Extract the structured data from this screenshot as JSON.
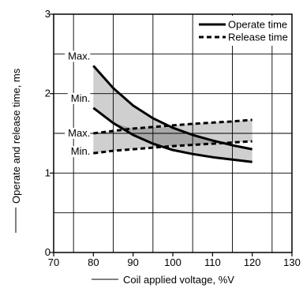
{
  "chart_data": {
    "type": "line",
    "title": "",
    "xlabel": "Coil applied voltage, %V",
    "ylabel": "Operate and release time, ms",
    "xlim": [
      70,
      130
    ],
    "ylim": [
      0,
      3
    ],
    "xticks": [
      "70",
      "80",
      "90",
      "100",
      "110",
      "120",
      "130"
    ],
    "yticks": [
      "0",
      "1",
      "2",
      "3"
    ],
    "grid": true,
    "legend_position": "top-right",
    "x": [
      80,
      85,
      90,
      95,
      100,
      105,
      110,
      115,
      120
    ],
    "legend": [
      {
        "label": "Operate time",
        "style": "solid"
      },
      {
        "label": "Release time",
        "style": "dashed"
      }
    ],
    "series": [
      {
        "group": "Operate time",
        "bound": "Max.",
        "style": "solid",
        "values": [
          2.35,
          2.07,
          1.85,
          1.69,
          1.57,
          1.48,
          1.41,
          1.35,
          1.3
        ]
      },
      {
        "group": "Operate time",
        "bound": "Min.",
        "style": "solid",
        "values": [
          1.82,
          1.63,
          1.48,
          1.37,
          1.29,
          1.24,
          1.2,
          1.17,
          1.14
        ]
      },
      {
        "group": "Release time",
        "bound": "Max.",
        "style": "dashed",
        "values": [
          1.5,
          1.53,
          1.56,
          1.58,
          1.6,
          1.62,
          1.635,
          1.65,
          1.67
        ]
      },
      {
        "group": "Release time",
        "bound": "Min.",
        "style": "dashed",
        "values": [
          1.25,
          1.28,
          1.3,
          1.32,
          1.34,
          1.355,
          1.37,
          1.385,
          1.4
        ]
      }
    ],
    "curve_labels": [
      "Max.",
      "Min.",
      "Max.",
      "Min."
    ],
    "band_fill": "#cfcfcf",
    "band_overlap_fill": "#a8a8a8",
    "line_color": "#000000"
  }
}
